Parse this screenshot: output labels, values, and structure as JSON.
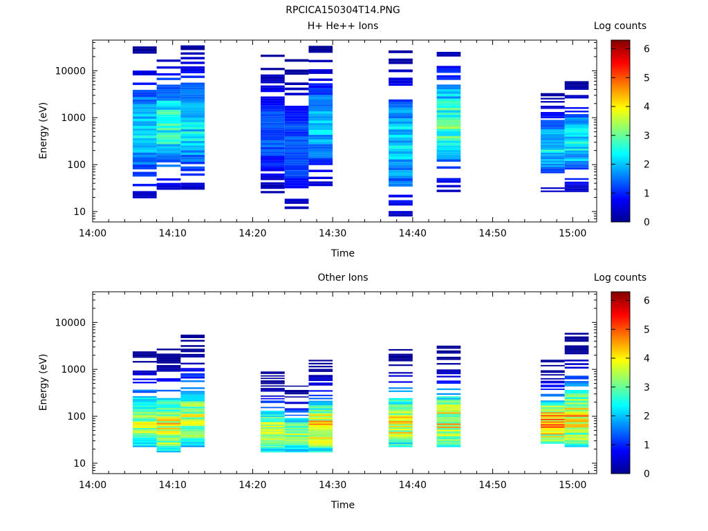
{
  "figure_title": "RPCICA150304T14.PNG",
  "chart_data": [
    {
      "type": "heatmap",
      "title": "H+ He++ Ions",
      "xlabel": "Time",
      "ylabel": "Energy (eV)",
      "x_ticks": [
        "14:00",
        "14:10",
        "14:20",
        "14:30",
        "14:40",
        "14:50",
        "15:00"
      ],
      "xlim_minutes_after_1400": [
        0,
        63
      ],
      "y_scale": "log",
      "y_ticks": [
        "10",
        "100",
        "1000",
        "10000"
      ],
      "ylim": [
        6,
        45000
      ],
      "colorbar": {
        "label": "Log counts",
        "ticks": [
          "0",
          "1",
          "2",
          "3",
          "4",
          "5",
          "6"
        ],
        "range": [
          0,
          6.3
        ],
        "colormap": "jet"
      },
      "time_bins": [
        {
          "start": "14:05",
          "end": "14:08",
          "e_min": 17,
          "e_max": 33000,
          "peak_log_counts": 2.2
        },
        {
          "start": "14:08",
          "end": "14:11",
          "e_min": 26,
          "e_max": 34000,
          "peak_log_counts": 2.6
        },
        {
          "start": "14:11",
          "end": "14:14",
          "e_min": 26,
          "e_max": 39000,
          "peak_log_counts": 2.3
        },
        {
          "start": "14:21",
          "end": "14:24",
          "e_min": 22,
          "e_max": 22000,
          "peak_log_counts": 1.4
        },
        {
          "start": "14:24",
          "end": "14:27",
          "e_min": 6,
          "e_max": 20000,
          "peak_log_counts": 1.3
        },
        {
          "start": "14:27",
          "end": "14:30",
          "e_min": 22,
          "e_max": 34000,
          "peak_log_counts": 2.0
        },
        {
          "start": "14:37",
          "end": "14:40",
          "e_min": 6,
          "e_max": 31000,
          "peak_log_counts": 2.2
        },
        {
          "start": "14:43",
          "end": "14:46",
          "e_min": 26,
          "e_max": 40000,
          "peak_log_counts": 2.8
        },
        {
          "start": "14:56",
          "end": "14:59",
          "e_min": 26,
          "e_max": 3600,
          "peak_log_counts": 2.2
        },
        {
          "start": "14:59",
          "end": "15:02",
          "e_min": 26,
          "e_max": 6000,
          "peak_log_counts": 2.3
        }
      ]
    },
    {
      "type": "heatmap",
      "title": "Other Ions",
      "xlabel": "Time",
      "ylabel": "Energy (eV)",
      "x_ticks": [
        "14:00",
        "14:10",
        "14:20",
        "14:30",
        "14:40",
        "14:50",
        "15:00"
      ],
      "xlim_minutes_after_1400": [
        0,
        63
      ],
      "y_scale": "log",
      "y_ticks": [
        "10",
        "100",
        "1000",
        "10000"
      ],
      "ylim": [
        6,
        45000
      ],
      "colorbar": {
        "label": "Log counts",
        "ticks": [
          "0",
          "1",
          "2",
          "3",
          "4",
          "5",
          "6"
        ],
        "range": [
          0,
          6.3
        ],
        "colormap": "jet"
      },
      "time_bins": [
        {
          "start": "14:05",
          "end": "14:08",
          "e_min": 22,
          "e_max": 3300,
          "peak_log_counts": 3.4
        },
        {
          "start": "14:08",
          "end": "14:11",
          "e_min": 17,
          "e_max": 3000,
          "peak_log_counts": 3.8
        },
        {
          "start": "14:11",
          "end": "14:14",
          "e_min": 22,
          "e_max": 5500,
          "peak_log_counts": 3.6
        },
        {
          "start": "14:21",
          "end": "14:24",
          "e_min": 17,
          "e_max": 900,
          "peak_log_counts": 3.5
        },
        {
          "start": "14:24",
          "end": "14:27",
          "e_min": 17,
          "e_max": 500,
          "peak_log_counts": 3.3
        },
        {
          "start": "14:27",
          "end": "14:30",
          "e_min": 17,
          "e_max": 2000,
          "peak_log_counts": 4.0
        },
        {
          "start": "14:37",
          "end": "14:40",
          "e_min": 22,
          "e_max": 2700,
          "peak_log_counts": 3.9
        },
        {
          "start": "14:43",
          "end": "14:46",
          "e_min": 22,
          "e_max": 3200,
          "peak_log_counts": 3.8
        },
        {
          "start": "14:56",
          "end": "14:59",
          "e_min": 26,
          "e_max": 1600,
          "peak_log_counts": 4.4
        },
        {
          "start": "14:59",
          "end": "15:02",
          "e_min": 22,
          "e_max": 6000,
          "peak_log_counts": 4.0
        }
      ]
    }
  ]
}
